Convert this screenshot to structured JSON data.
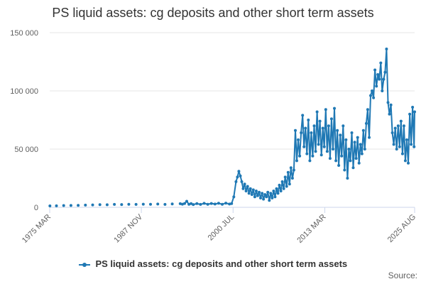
{
  "chart_data": {
    "type": "line",
    "title": "PS liquid assets: cg deposits and other short term assets",
    "xlabel": "",
    "ylabel": "",
    "ylim": [
      0,
      150000
    ],
    "y_ticks": [
      0,
      50000,
      100000,
      150000
    ],
    "y_tick_labels": [
      "0",
      "50 000",
      "100 000",
      "150 000"
    ],
    "x_tick_labels": [
      "1975 MAR",
      "1987 NOV",
      "2000 JUL",
      "2013 MAR",
      "2025 AUG"
    ],
    "x_tick_positions": [
      1975.17,
      1987.83,
      2000.5,
      2013.17,
      2025.58
    ],
    "xlim": [
      1975.17,
      2025.58
    ],
    "grid": true,
    "legend_position": "bottom",
    "series": [
      {
        "name": "PS liquid assets: cg deposits and other short term assets",
        "color": "#1f78b4",
        "points": [
          [
            1975.2,
            1200
          ],
          [
            1976.1,
            1300
          ],
          [
            1977.1,
            1500
          ],
          [
            1978.1,
            1600
          ],
          [
            1979.1,
            1700
          ],
          [
            1980.1,
            1900
          ],
          [
            1981.1,
            2100
          ],
          [
            1982.1,
            2300
          ],
          [
            1983.1,
            2200
          ],
          [
            1984.1,
            2500
          ],
          [
            1985.1,
            2400
          ],
          [
            1986.1,
            2600
          ],
          [
            1987.1,
            2500
          ],
          [
            1988.1,
            2700
          ],
          [
            1989.1,
            2600
          ],
          [
            1990.1,
            2800
          ],
          [
            1991.1,
            2500
          ],
          [
            1992.1,
            2900
          ],
          [
            1993.2,
            3100
          ],
          [
            1993.5,
            2700
          ],
          [
            1993.8,
            3300
          ],
          [
            1994.1,
            5200
          ],
          [
            1994.4,
            2600
          ],
          [
            1994.7,
            3200
          ],
          [
            1995.0,
            2400
          ],
          [
            1995.5,
            3200
          ],
          [
            1996.0,
            2500
          ],
          [
            1996.5,
            3400
          ],
          [
            1997.0,
            2600
          ],
          [
            1997.5,
            3300
          ],
          [
            1998.0,
            2800
          ],
          [
            1998.5,
            3500
          ],
          [
            1999.0,
            2600
          ],
          [
            1999.5,
            3600
          ],
          [
            2000.0,
            2800
          ],
          [
            2000.3,
            3200
          ],
          [
            2000.6,
            9000
          ],
          [
            2000.9,
            22000
          ],
          [
            2001.1,
            26000
          ],
          [
            2001.3,
            31000
          ],
          [
            2001.5,
            27000
          ],
          [
            2001.7,
            22000
          ],
          [
            2001.9,
            16000
          ],
          [
            2002.1,
            20000
          ],
          [
            2002.3,
            14000
          ],
          [
            2002.5,
            18000
          ],
          [
            2002.7,
            12000
          ],
          [
            2002.9,
            16000
          ],
          [
            2003.1,
            11000
          ],
          [
            2003.3,
            15000
          ],
          [
            2003.5,
            9000
          ],
          [
            2003.7,
            14000
          ],
          [
            2003.9,
            10000
          ],
          [
            2004.1,
            13000
          ],
          [
            2004.3,
            8000
          ],
          [
            2004.5,
            12000
          ],
          [
            2004.7,
            7000
          ],
          [
            2004.9,
            11000
          ],
          [
            2005.1,
            9000
          ],
          [
            2005.3,
            13000
          ],
          [
            2005.5,
            6000
          ],
          [
            2005.7,
            12000
          ],
          [
            2005.9,
            8000
          ],
          [
            2006.1,
            14000
          ],
          [
            2006.3,
            9000
          ],
          [
            2006.5,
            16000
          ],
          [
            2006.7,
            12000
          ],
          [
            2006.9,
            19000
          ],
          [
            2007.1,
            14000
          ],
          [
            2007.3,
            22000
          ],
          [
            2007.5,
            16000
          ],
          [
            2007.7,
            26000
          ],
          [
            2007.9,
            18000
          ],
          [
            2008.1,
            30000
          ],
          [
            2008.3,
            20000
          ],
          [
            2008.5,
            34000
          ],
          [
            2008.7,
            25000
          ],
          [
            2008.9,
            32000
          ],
          [
            2009.1,
            66000
          ],
          [
            2009.3,
            40000
          ],
          [
            2009.5,
            58000
          ],
          [
            2009.7,
            44000
          ],
          [
            2009.9,
            64000
          ],
          [
            2010.1,
            79000
          ],
          [
            2010.3,
            52000
          ],
          [
            2010.5,
            68000
          ],
          [
            2010.7,
            46000
          ],
          [
            2010.9,
            75000
          ],
          [
            2011.1,
            40000
          ],
          [
            2011.3,
            64000
          ],
          [
            2011.5,
            44000
          ],
          [
            2011.7,
            70000
          ],
          [
            2011.9,
            48000
          ],
          [
            2012.1,
            82000
          ],
          [
            2012.3,
            54000
          ],
          [
            2012.5,
            74000
          ],
          [
            2012.7,
            45000
          ],
          [
            2012.9,
            68000
          ],
          [
            2013.1,
            52000
          ],
          [
            2013.3,
            84000
          ],
          [
            2013.5,
            48000
          ],
          [
            2013.7,
            70000
          ],
          [
            2013.9,
            42000
          ],
          [
            2014.1,
            76000
          ],
          [
            2014.3,
            50000
          ],
          [
            2014.5,
            85000
          ],
          [
            2014.7,
            40000
          ],
          [
            2014.9,
            66000
          ],
          [
            2015.1,
            36000
          ],
          [
            2015.3,
            62000
          ],
          [
            2015.5,
            44000
          ],
          [
            2015.7,
            70000
          ],
          [
            2015.9,
            32000
          ],
          [
            2016.1,
            58000
          ],
          [
            2016.3,
            25000
          ],
          [
            2016.5,
            50000
          ],
          [
            2016.7,
            40000
          ],
          [
            2016.9,
            64000
          ],
          [
            2017.1,
            34000
          ],
          [
            2017.3,
            56000
          ],
          [
            2017.5,
            42000
          ],
          [
            2017.7,
            60000
          ],
          [
            2017.9,
            38000
          ],
          [
            2018.1,
            54000
          ],
          [
            2018.3,
            46000
          ],
          [
            2018.5,
            66000
          ],
          [
            2018.7,
            50000
          ],
          [
            2018.9,
            72000
          ],
          [
            2019.1,
            84000
          ],
          [
            2019.3,
            60000
          ],
          [
            2019.5,
            96000
          ],
          [
            2019.7,
            100000
          ],
          [
            2019.9,
            94000
          ],
          [
            2020.1,
            118000
          ],
          [
            2020.3,
            104000
          ],
          [
            2020.5,
            114000
          ],
          [
            2020.7,
            110000
          ],
          [
            2020.9,
            124000
          ],
          [
            2021.1,
            100000
          ],
          [
            2021.3,
            110000
          ],
          [
            2021.5,
            116000
          ],
          [
            2021.7,
            136000
          ],
          [
            2021.9,
            90000
          ],
          [
            2022.1,
            80000
          ],
          [
            2022.3,
            88000
          ],
          [
            2022.5,
            64000
          ],
          [
            2022.7,
            54000
          ],
          [
            2022.9,
            68000
          ],
          [
            2023.1,
            50000
          ],
          [
            2023.3,
            70000
          ],
          [
            2023.5,
            52000
          ],
          [
            2023.7,
            74000
          ],
          [
            2023.9,
            46000
          ],
          [
            2024.1,
            70000
          ],
          [
            2024.3,
            40000
          ],
          [
            2024.5,
            58000
          ],
          [
            2024.7,
            38000
          ],
          [
            2024.9,
            80000
          ],
          [
            2025.1,
            54000
          ],
          [
            2025.3,
            86000
          ],
          [
            2025.5,
            52000
          ],
          [
            2025.58,
            82000
          ]
        ]
      }
    ]
  },
  "legend": {
    "label": "PS liquid assets: cg deposits and other short term assets"
  },
  "source": {
    "label": "Source:"
  }
}
